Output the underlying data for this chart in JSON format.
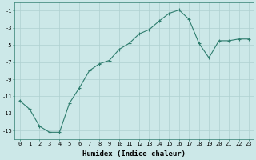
{
  "x": [
    0,
    1,
    2,
    3,
    4,
    5,
    6,
    7,
    8,
    9,
    10,
    11,
    12,
    13,
    14,
    15,
    16,
    17,
    18,
    19,
    20,
    21,
    22,
    23
  ],
  "y": [
    -11.5,
    -12.5,
    -14.5,
    -15.2,
    -15.2,
    -11.8,
    -10.0,
    -8.0,
    -7.2,
    -6.8,
    -5.5,
    -4.8,
    -3.7,
    -3.2,
    -2.2,
    -1.3,
    -0.9,
    -2.0,
    -4.8,
    -6.5,
    -4.5,
    -4.5,
    -4.3,
    -4.3
  ],
  "line_color": "#2e7d6e",
  "marker": "+",
  "marker_color": "#2e7d6e",
  "bg_color": "#cce8e8",
  "grid_color": "#afd0d0",
  "xlabel": "Humidex (Indice chaleur)",
  "xlim": [
    -0.5,
    23.5
  ],
  "ylim": [
    -16,
    0
  ],
  "yticks": [
    -15,
    -13,
    -11,
    -9,
    -7,
    -5,
    -3,
    -1
  ],
  "xticks": [
    0,
    1,
    2,
    3,
    4,
    5,
    6,
    7,
    8,
    9,
    10,
    11,
    12,
    13,
    14,
    15,
    16,
    17,
    18,
    19,
    20,
    21,
    22,
    23
  ],
  "tick_fontsize": 5.0,
  "xlabel_fontsize": 6.5,
  "line_width": 0.8,
  "marker_size": 3.0
}
